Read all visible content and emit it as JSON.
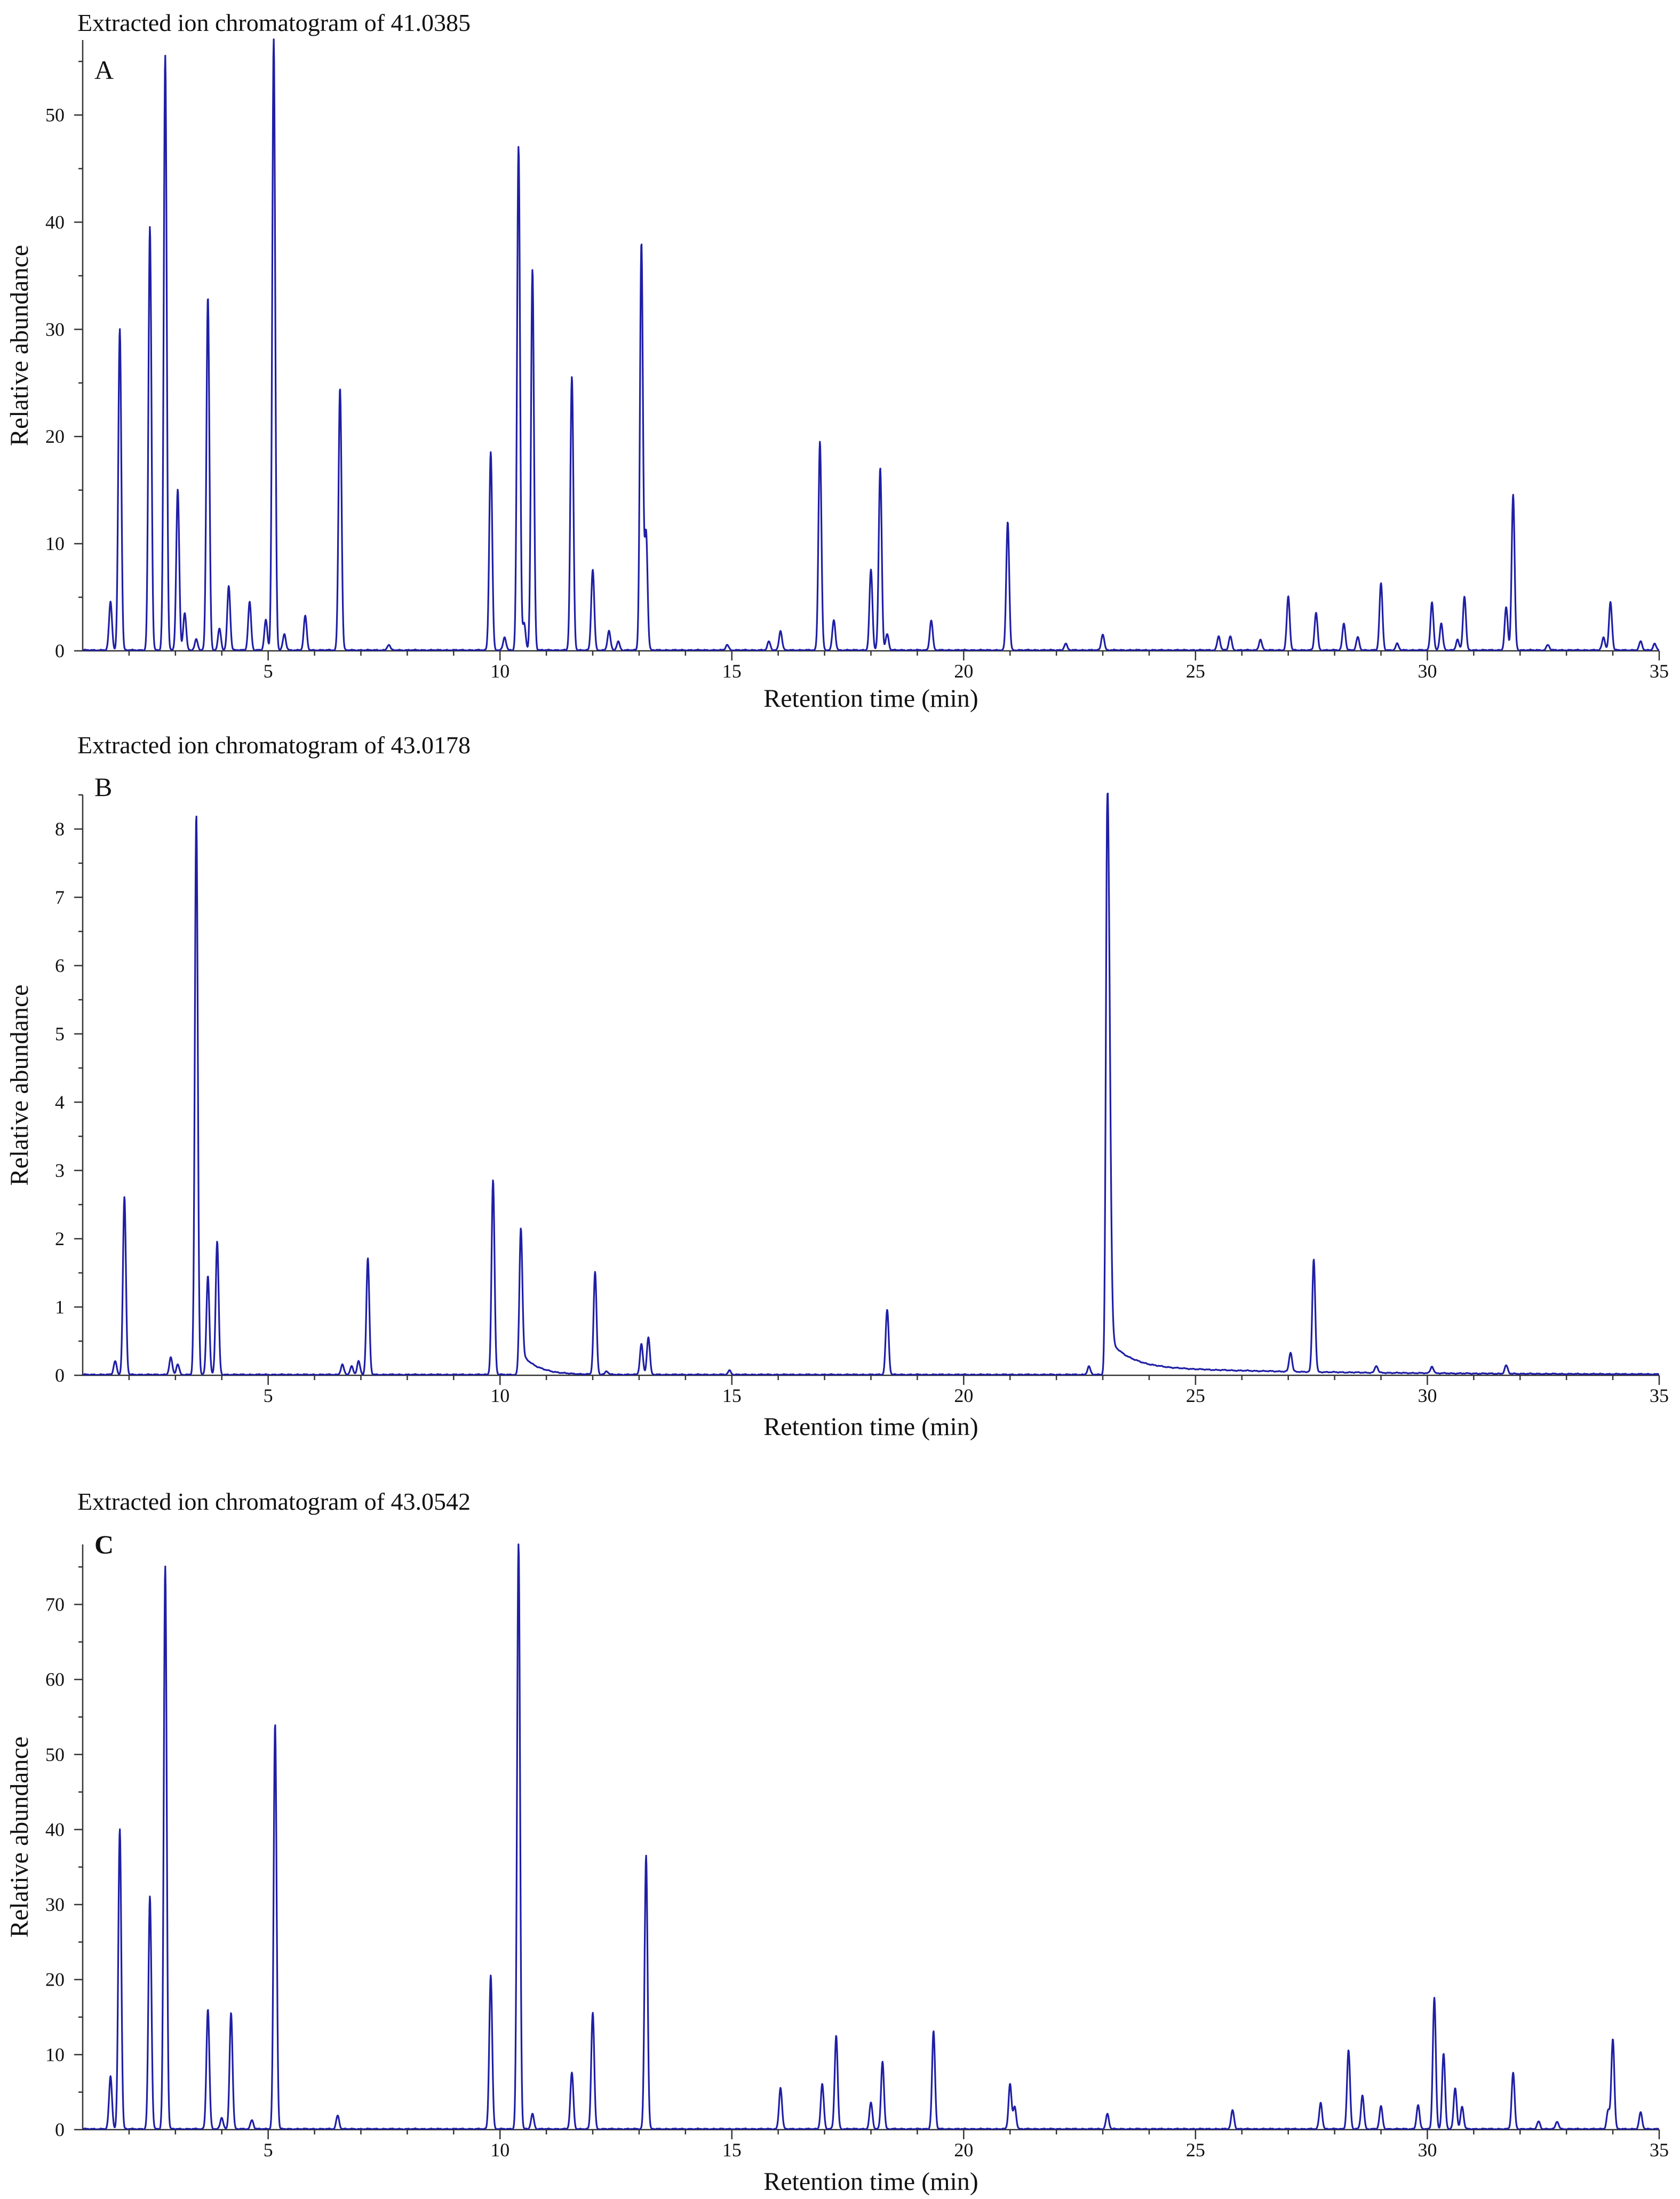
{
  "chart_data": [
    {
      "type": "line",
      "panel": "A",
      "title": "Extracted ion chromatogram of 41.0385",
      "xlabel": "Retention time (min)",
      "ylabel": "Relative abundance",
      "xlim": [
        1,
        35
      ],
      "ylim": [
        0,
        57
      ],
      "xticks": [
        5,
        10,
        15,
        20,
        25,
        30,
        35
      ],
      "yticks": [
        0,
        10,
        20,
        30,
        40,
        50
      ],
      "grid": false,
      "color": "#1f1fa6",
      "peaks": [
        [
          1.6,
          4.5
        ],
        [
          1.8,
          30
        ],
        [
          2.45,
          39.5
        ],
        [
          2.78,
          55.5
        ],
        [
          3.05,
          15
        ],
        [
          3.2,
          3.5
        ],
        [
          3.45,
          1
        ],
        [
          3.7,
          33
        ],
        [
          3.95,
          2
        ],
        [
          4.15,
          6
        ],
        [
          4.6,
          4.5
        ],
        [
          4.95,
          2.8
        ],
        [
          5.12,
          57
        ],
        [
          5.35,
          1.5
        ],
        [
          5.8,
          3.2
        ],
        [
          6.55,
          24.5
        ],
        [
          7.6,
          0.5
        ],
        [
          9.8,
          18.5
        ],
        [
          10.1,
          1.2
        ],
        [
          10.4,
          47
        ],
        [
          10.52,
          2.5
        ],
        [
          10.7,
          35.5
        ],
        [
          11.55,
          25.5
        ],
        [
          12.0,
          7.5
        ],
        [
          12.35,
          1.8
        ],
        [
          12.55,
          0.8
        ],
        [
          13.05,
          38
        ],
        [
          13.15,
          11
        ],
        [
          14.9,
          0.5
        ],
        [
          15.8,
          0.8
        ],
        [
          16.05,
          1.8
        ],
        [
          16.9,
          19.5
        ],
        [
          17.2,
          2.8
        ],
        [
          18.0,
          7.5
        ],
        [
          18.2,
          17
        ],
        [
          18.35,
          1.5
        ],
        [
          19.3,
          2.8
        ],
        [
          20.95,
          12
        ],
        [
          22.2,
          0.6
        ],
        [
          23.0,
          1.5
        ],
        [
          25.5,
          1.3
        ],
        [
          25.75,
          1.3
        ],
        [
          26.4,
          1
        ],
        [
          27.0,
          5
        ],
        [
          27.6,
          3.5
        ],
        [
          28.2,
          2.5
        ],
        [
          28.5,
          1.2
        ],
        [
          29.0,
          6.2
        ],
        [
          29.35,
          0.6
        ],
        [
          30.1,
          4.5
        ],
        [
          30.3,
          2.5
        ],
        [
          30.65,
          1
        ],
        [
          30.8,
          5
        ],
        [
          31.7,
          4
        ],
        [
          31.85,
          14.5
        ],
        [
          32.6,
          0.5
        ],
        [
          33.8,
          1.2
        ],
        [
          33.95,
          4.5
        ],
        [
          34.6,
          0.8
        ],
        [
          34.9,
          0.6
        ]
      ]
    },
    {
      "type": "line",
      "panel": "B",
      "title": "Extracted ion chromatogram of 43.0178",
      "xlabel": "Retention time (min)",
      "ylabel": "Relative abundance",
      "xlim": [
        1,
        35
      ],
      "ylim": [
        0,
        8.5
      ],
      "xticks": [
        5,
        10,
        15,
        20,
        25,
        30,
        35
      ],
      "yticks": [
        0,
        1,
        2,
        3,
        4,
        5,
        6,
        7,
        8
      ],
      "grid": false,
      "color": "#1f1fa6",
      "peaks": [
        [
          1.7,
          0.2
        ],
        [
          1.9,
          2.6
        ],
        [
          2.9,
          0.25
        ],
        [
          3.05,
          0.15
        ],
        [
          3.45,
          8.2
        ],
        [
          3.7,
          1.45
        ],
        [
          3.9,
          1.95
        ],
        [
          6.6,
          0.15
        ],
        [
          6.8,
          0.12
        ],
        [
          6.95,
          0.2
        ],
        [
          7.15,
          1.7
        ],
        [
          9.85,
          2.85
        ],
        [
          10.45,
          2.15
        ],
        [
          12.05,
          1.5
        ],
        [
          12.3,
          0.05
        ],
        [
          13.05,
          0.45
        ],
        [
          13.2,
          0.55
        ],
        [
          14.95,
          0.06
        ],
        [
          18.35,
          0.95
        ],
        [
          22.7,
          0.12
        ],
        [
          23.1,
          8.5
        ],
        [
          27.05,
          0.28
        ],
        [
          27.55,
          1.65
        ],
        [
          28.9,
          0.1
        ],
        [
          30.1,
          0.1
        ],
        [
          31.7,
          0.12
        ]
      ]
    },
    {
      "type": "line",
      "panel": "C",
      "title": "Extracted ion chromatogram of 43.0542",
      "xlabel": "Retention time (min)",
      "ylabel": "Relative abundance",
      "xlim": [
        1,
        35
      ],
      "ylim": [
        0,
        78
      ],
      "xticks": [
        5,
        10,
        15,
        20,
        25,
        30,
        35
      ],
      "yticks": [
        0,
        10,
        20,
        30,
        40,
        50,
        60,
        70
      ],
      "grid": false,
      "color": "#1f1fa6",
      "peaks": [
        [
          1.6,
          7
        ],
        [
          1.8,
          40
        ],
        [
          2.45,
          31
        ],
        [
          2.78,
          75
        ],
        [
          3.7,
          16
        ],
        [
          4.0,
          1.5
        ],
        [
          4.2,
          15.5
        ],
        [
          4.65,
          1.2
        ],
        [
          5.15,
          54
        ],
        [
          6.5,
          1.8
        ],
        [
          9.8,
          20.5
        ],
        [
          10.4,
          78
        ],
        [
          10.7,
          2
        ],
        [
          11.55,
          7.5
        ],
        [
          12.0,
          15.5
        ],
        [
          13.15,
          36.5
        ],
        [
          16.05,
          5.5
        ],
        [
          16.95,
          6
        ],
        [
          17.25,
          12.5
        ],
        [
          18.0,
          3.5
        ],
        [
          18.25,
          9
        ],
        [
          19.35,
          13
        ],
        [
          21.0,
          6
        ],
        [
          21.1,
          3
        ],
        [
          23.1,
          2
        ],
        [
          25.8,
          2.5
        ],
        [
          27.7,
          3.5
        ],
        [
          28.3,
          10.5
        ],
        [
          28.6,
          4.5
        ],
        [
          29.0,
          3
        ],
        [
          29.8,
          3.2
        ],
        [
          30.15,
          17.5
        ],
        [
          30.35,
          10
        ],
        [
          30.6,
          5.5
        ],
        [
          30.75,
          3
        ],
        [
          31.85,
          7.5
        ],
        [
          32.4,
          1
        ],
        [
          32.8,
          1
        ],
        [
          33.9,
          2.5
        ],
        [
          34.0,
          12
        ],
        [
          34.6,
          2.2
        ]
      ]
    }
  ]
}
